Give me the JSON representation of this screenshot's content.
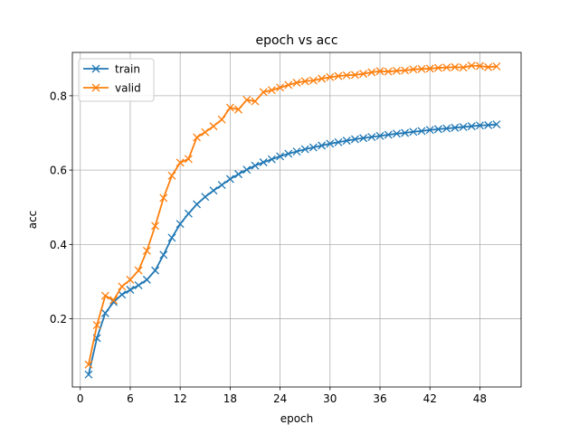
{
  "chart_data": {
    "type": "line",
    "title": "epoch vs acc",
    "xlabel": "epoch",
    "ylabel": "acc",
    "xlim": [
      -0.95,
      52.95
    ],
    "ylim": [
      0.0165,
      0.9165
    ],
    "xticks": [
      0,
      6,
      12,
      18,
      24,
      30,
      36,
      42,
      48
    ],
    "yticks": [
      0.2,
      0.4,
      0.6,
      0.8
    ],
    "grid": true,
    "legend": "upper-left",
    "marker": "x",
    "x": [
      1,
      2,
      3,
      4,
      5,
      6,
      7,
      8,
      9,
      10,
      11,
      12,
      13,
      14,
      15,
      16,
      17,
      18,
      19,
      20,
      21,
      22,
      23,
      24,
      25,
      26,
      27,
      28,
      29,
      30,
      31,
      32,
      33,
      34,
      35,
      36,
      37,
      38,
      39,
      40,
      41,
      42,
      43,
      44,
      45,
      46,
      47,
      48,
      49,
      50
    ],
    "series": [
      {
        "name": "train",
        "color": "#1f77b4",
        "values": [
          0.05,
          0.148,
          0.215,
          0.245,
          0.265,
          0.278,
          0.29,
          0.305,
          0.33,
          0.372,
          0.418,
          0.455,
          0.483,
          0.508,
          0.528,
          0.545,
          0.56,
          0.576,
          0.589,
          0.601,
          0.612,
          0.621,
          0.629,
          0.637,
          0.644,
          0.65,
          0.656,
          0.661,
          0.666,
          0.671,
          0.675,
          0.679,
          0.683,
          0.686,
          0.689,
          0.692,
          0.695,
          0.698,
          0.7,
          0.703,
          0.705,
          0.708,
          0.71,
          0.712,
          0.714,
          0.716,
          0.718,
          0.72,
          0.721,
          0.723
        ]
      },
      {
        "name": "valid",
        "color": "#ff7f0e",
        "values": [
          0.077,
          0.183,
          0.262,
          0.25,
          0.287,
          0.305,
          0.33,
          0.383,
          0.45,
          0.525,
          0.585,
          0.62,
          0.63,
          0.688,
          0.702,
          0.718,
          0.736,
          0.768,
          0.763,
          0.789,
          0.785,
          0.81,
          0.815,
          0.822,
          0.829,
          0.835,
          0.839,
          0.841,
          0.846,
          0.85,
          0.853,
          0.855,
          0.856,
          0.859,
          0.863,
          0.866,
          0.865,
          0.867,
          0.868,
          0.871,
          0.872,
          0.873,
          0.875,
          0.876,
          0.877,
          0.876,
          0.881,
          0.88,
          0.877,
          0.879
        ]
      }
    ]
  }
}
